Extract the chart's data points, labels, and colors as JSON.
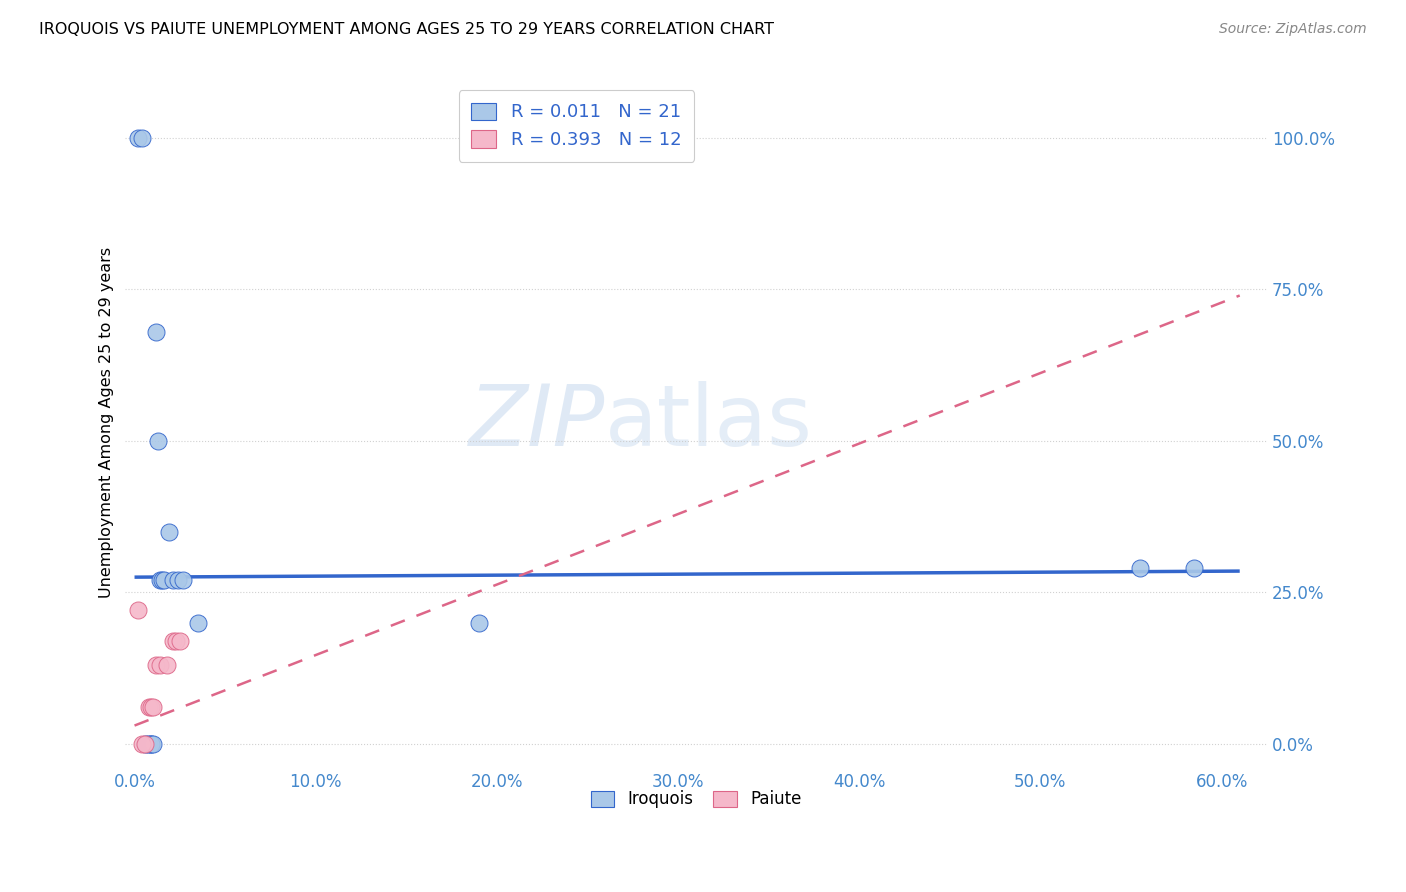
{
  "title": "IROQUOIS VS PAIUTE UNEMPLOYMENT AMONG AGES 25 TO 29 YEARS CORRELATION CHART",
  "source": "Source: ZipAtlas.com",
  "ylabel": "Unemployment Among Ages 25 to 29 years",
  "xticks": [
    0.0,
    0.1,
    0.2,
    0.3,
    0.4,
    0.5,
    0.6
  ],
  "xticklabels": [
    "0.0%",
    "10.0%",
    "20.0%",
    "30.0%",
    "40.0%",
    "50.0%",
    "60.0%"
  ],
  "yticks": [
    0.0,
    0.25,
    0.5,
    0.75,
    1.0
  ],
  "yticklabels": [
    "0.0%",
    "25.0%",
    "50.0%",
    "75.0%",
    "100.0%"
  ],
  "xlim": [
    -0.005,
    0.625
  ],
  "ylim": [
    -0.04,
    1.1
  ],
  "iroquois_x": [
    0.002,
    0.004,
    0.006,
    0.007,
    0.008,
    0.009,
    0.009,
    0.01,
    0.012,
    0.013,
    0.014,
    0.015,
    0.016,
    0.019,
    0.021,
    0.024,
    0.027,
    0.035,
    0.19,
    0.555,
    0.585
  ],
  "iroquois_y": [
    1.0,
    1.0,
    0.0,
    0.0,
    0.0,
    0.0,
    0.0,
    0.0,
    0.68,
    0.5,
    0.27,
    0.27,
    0.27,
    0.35,
    0.27,
    0.27,
    0.27,
    0.2,
    0.2,
    0.29,
    0.29
  ],
  "paiute_x": [
    0.002,
    0.004,
    0.006,
    0.008,
    0.009,
    0.01,
    0.012,
    0.014,
    0.018,
    0.021,
    0.023,
    0.025
  ],
  "paiute_y": [
    0.22,
    0.0,
    0.0,
    0.06,
    0.06,
    0.06,
    0.13,
    0.13,
    0.13,
    0.17,
    0.17,
    0.17
  ],
  "iroquois_R": 0.011,
  "iroquois_N": 21,
  "paiute_R": 0.393,
  "paiute_N": 12,
  "iroquois_trendline_x": [
    0.0,
    0.61
  ],
  "iroquois_trendline_y": [
    0.275,
    0.285
  ],
  "paiute_trendline_x": [
    0.0,
    0.61
  ],
  "paiute_trendline_y": [
    0.03,
    0.74
  ],
  "iroquois_color": "#aac8e8",
  "paiute_color": "#f5b8ca",
  "iroquois_line_color": "#3366cc",
  "paiute_line_color": "#dd6688",
  "watermark_zip": "ZIP",
  "watermark_atlas": "atlas",
  "background_color": "#ffffff",
  "grid_color": "#cccccc",
  "tick_color": "#4488cc"
}
